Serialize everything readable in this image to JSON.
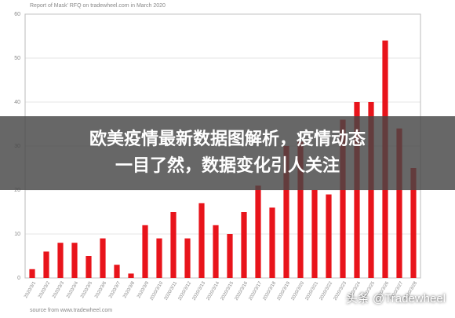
{
  "chart_data": {
    "type": "bar",
    "title": "Report of Mask' RFQ on tradewheel.com in March 2020",
    "categories": [
      "2020/3/1",
      "2020/3/2",
      "2020/3/3",
      "2020/3/4",
      "2020/3/5",
      "2020/3/6",
      "2020/3/7",
      "2020/3/8",
      "2020/3/9",
      "2020/3/10",
      "2020/3/11",
      "2020/3/12",
      "2020/3/13",
      "2020/3/14",
      "2020/3/15",
      "2020/3/16",
      "2020/3/17",
      "2020/3/18",
      "2020/3/19",
      "2020/3/20",
      "2020/3/21",
      "2020/3/22",
      "2020/3/23",
      "2020/3/24",
      "2020/3/25",
      "2020/3/26",
      "2020/3/27",
      "2020/3/28"
    ],
    "values": [
      2,
      6,
      8,
      8,
      5,
      9,
      3,
      1,
      12,
      9,
      15,
      9,
      17,
      12,
      10,
      15,
      21,
      16,
      30,
      31,
      20,
      19,
      36,
      40,
      40,
      54,
      34,
      25
    ],
    "color": "#e8141b",
    "ylim": [
      0,
      60
    ],
    "yticks": [
      0,
      10,
      20,
      30,
      40,
      50,
      60
    ],
    "grid": true,
    "source": "source from www.tradewheel.com"
  },
  "overlay": {
    "lines": [
      "欧美疫情最新数据图解析，疫情动态",
      "一目了然，数据变化引人关注"
    ]
  },
  "watermark": "头条 @Tradewheel"
}
